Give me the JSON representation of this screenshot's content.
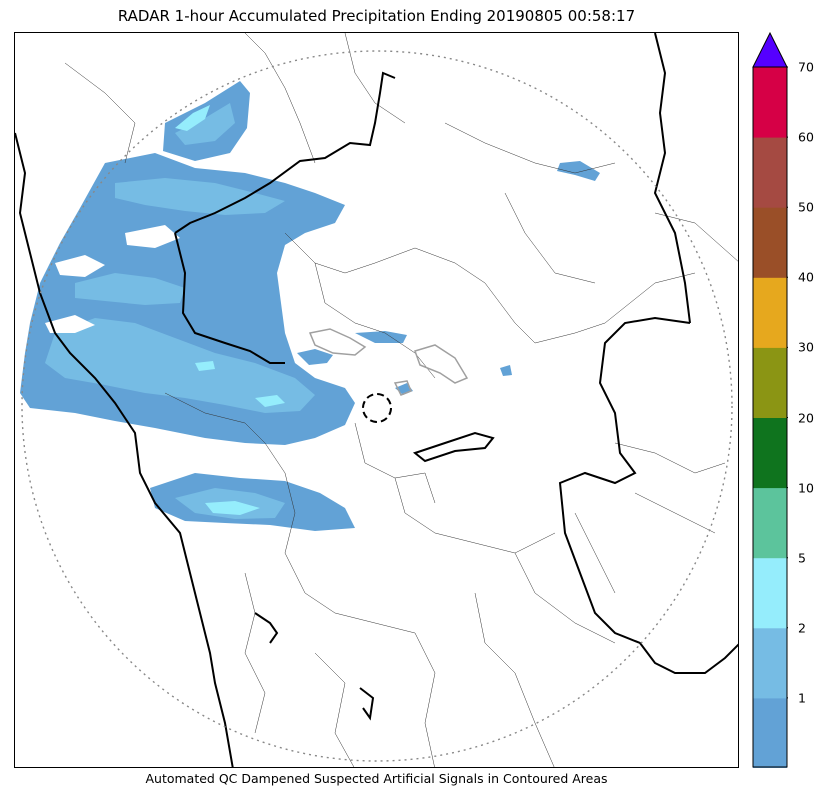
{
  "title": "RADAR 1-hour Accumulated Precipitation Ending 20190805 00:58:17",
  "caption": "Automated QC Dampened Suspected Artificial Signals in Contoured Areas",
  "colorbar": {
    "ticks": [
      "1",
      "2",
      "5",
      "10",
      "20",
      "30",
      "40",
      "50",
      "60",
      "70"
    ],
    "colors": [
      "#62a2d6",
      "#76bce4",
      "#95edfc",
      "#5cc49c",
      "#0f741e",
      "#8b9514",
      "#e6a81e",
      "#9a4f28",
      "#a54a42",
      "#d60046"
    ],
    "extend_color": "#5500ff"
  }
}
